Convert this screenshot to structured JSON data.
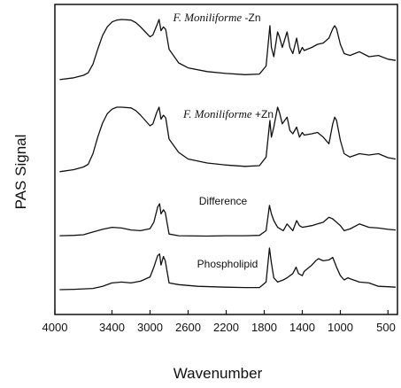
{
  "chart_data": {
    "type": "line",
    "title": "",
    "xlabel": "Wavenumber",
    "ylabel": "PAS Signal",
    "xlim": [
      4000,
      400
    ],
    "x_reversed": true,
    "x_ticks": [
      4000,
      3400,
      3000,
      2600,
      2200,
      1800,
      1400,
      1000,
      500
    ],
    "y_ticks": [],
    "grid": false,
    "series": [
      {
        "name": "F. Moniliforme -Zn",
        "label_parts": [
          "F. Moniliforme",
          " -Zn"
        ],
        "points": [
          [
            3950,
            0.03
          ],
          [
            3800,
            0.06
          ],
          [
            3700,
            0.1
          ],
          [
            3650,
            0.14
          ],
          [
            3600,
            0.28
          ],
          [
            3550,
            0.52
          ],
          [
            3500,
            0.74
          ],
          [
            3450,
            0.88
          ],
          [
            3400,
            0.96
          ],
          [
            3350,
            0.99
          ],
          [
            3300,
            1.0
          ],
          [
            3200,
            0.99
          ],
          [
            3150,
            0.95
          ],
          [
            3100,
            0.88
          ],
          [
            3050,
            0.8
          ],
          [
            3000,
            0.72
          ],
          [
            2970,
            0.75
          ],
          [
            2930,
            0.9
          ],
          [
            2905,
            1.0
          ],
          [
            2885,
            0.82
          ],
          [
            2860,
            0.88
          ],
          [
            2835,
            0.84
          ],
          [
            2800,
            0.52
          ],
          [
            2700,
            0.3
          ],
          [
            2600,
            0.22
          ],
          [
            2400,
            0.16
          ],
          [
            2200,
            0.13
          ],
          [
            2000,
            0.11
          ],
          [
            1850,
            0.12
          ],
          [
            1780,
            0.25
          ],
          [
            1740,
            0.9
          ],
          [
            1725,
            0.55
          ],
          [
            1700,
            0.4
          ],
          [
            1660,
            0.8
          ],
          [
            1640,
            0.72
          ],
          [
            1610,
            0.55
          ],
          [
            1560,
            0.8
          ],
          [
            1530,
            0.55
          ],
          [
            1500,
            0.45
          ],
          [
            1460,
            0.7
          ],
          [
            1430,
            0.45
          ],
          [
            1400,
            0.55
          ],
          [
            1380,
            0.5
          ],
          [
            1300,
            0.55
          ],
          [
            1240,
            0.6
          ],
          [
            1180,
            0.62
          ],
          [
            1120,
            0.7
          ],
          [
            1080,
            0.85
          ],
          [
            1060,
            0.9
          ],
          [
            1040,
            0.85
          ],
          [
            1000,
            0.6
          ],
          [
            960,
            0.45
          ],
          [
            900,
            0.42
          ],
          [
            800,
            0.48
          ],
          [
            700,
            0.4
          ],
          [
            600,
            0.42
          ],
          [
            500,
            0.36
          ],
          [
            420,
            0.34
          ]
        ]
      },
      {
        "name": "F. Moniliforme +Zn",
        "label_parts": [
          "F. Moniliforme",
          " +Zn"
        ],
        "points": [
          [
            3950,
            0.03
          ],
          [
            3800,
            0.06
          ],
          [
            3700,
            0.1
          ],
          [
            3650,
            0.14
          ],
          [
            3600,
            0.3
          ],
          [
            3550,
            0.55
          ],
          [
            3500,
            0.76
          ],
          [
            3450,
            0.9
          ],
          [
            3400,
            0.97
          ],
          [
            3350,
            1.0
          ],
          [
            3300,
            1.0
          ],
          [
            3200,
            0.99
          ],
          [
            3150,
            0.95
          ],
          [
            3100,
            0.88
          ],
          [
            3050,
            0.8
          ],
          [
            3000,
            0.72
          ],
          [
            2970,
            0.75
          ],
          [
            2930,
            0.92
          ],
          [
            2905,
            1.0
          ],
          [
            2885,
            0.82
          ],
          [
            2860,
            0.88
          ],
          [
            2835,
            0.84
          ],
          [
            2800,
            0.52
          ],
          [
            2700,
            0.32
          ],
          [
            2600,
            0.22
          ],
          [
            2400,
            0.16
          ],
          [
            2200,
            0.13
          ],
          [
            2000,
            0.11
          ],
          [
            1850,
            0.12
          ],
          [
            1780,
            0.25
          ],
          [
            1740,
            0.8
          ],
          [
            1725,
            0.55
          ],
          [
            1700,
            0.7
          ],
          [
            1660,
            1.0
          ],
          [
            1640,
            0.92
          ],
          [
            1610,
            0.75
          ],
          [
            1560,
            0.85
          ],
          [
            1530,
            0.65
          ],
          [
            1500,
            0.6
          ],
          [
            1460,
            0.7
          ],
          [
            1430,
            0.55
          ],
          [
            1400,
            0.62
          ],
          [
            1380,
            0.58
          ],
          [
            1300,
            0.6
          ],
          [
            1240,
            0.62
          ],
          [
            1180,
            0.55
          ],
          [
            1120,
            0.45
          ],
          [
            1080,
            0.75
          ],
          [
            1060,
            0.85
          ],
          [
            1040,
            0.8
          ],
          [
            1000,
            0.5
          ],
          [
            960,
            0.3
          ],
          [
            900,
            0.25
          ],
          [
            800,
            0.3
          ],
          [
            700,
            0.28
          ],
          [
            600,
            0.3
          ],
          [
            500,
            0.24
          ],
          [
            420,
            0.22
          ]
        ]
      },
      {
        "name": "Difference",
        "label_parts": [
          "Difference"
        ],
        "points": [
          [
            3950,
            0.05
          ],
          [
            3800,
            0.06
          ],
          [
            3700,
            0.08
          ],
          [
            3600,
            0.16
          ],
          [
            3500,
            0.24
          ],
          [
            3400,
            0.3
          ],
          [
            3300,
            0.28
          ],
          [
            3200,
            0.22
          ],
          [
            3100,
            0.2
          ],
          [
            3000,
            0.26
          ],
          [
            2960,
            0.45
          ],
          [
            2920,
            0.9
          ],
          [
            2900,
            1.0
          ],
          [
            2885,
            0.7
          ],
          [
            2860,
            0.82
          ],
          [
            2840,
            0.74
          ],
          [
            2800,
            0.1
          ],
          [
            2700,
            0.05
          ],
          [
            2400,
            0.04
          ],
          [
            2200,
            0.05
          ],
          [
            2000,
            0.05
          ],
          [
            1850,
            0.06
          ],
          [
            1780,
            0.2
          ],
          [
            1745,
            0.95
          ],
          [
            1725,
            0.7
          ],
          [
            1700,
            0.5
          ],
          [
            1660,
            0.3
          ],
          [
            1600,
            0.2
          ],
          [
            1560,
            0.4
          ],
          [
            1530,
            0.3
          ],
          [
            1500,
            0.2
          ],
          [
            1460,
            0.5
          ],
          [
            1430,
            0.35
          ],
          [
            1400,
            0.3
          ],
          [
            1300,
            0.35
          ],
          [
            1240,
            0.4
          ],
          [
            1180,
            0.45
          ],
          [
            1120,
            0.6
          ],
          [
            1080,
            0.55
          ],
          [
            1040,
            0.45
          ],
          [
            1000,
            0.35
          ],
          [
            960,
            0.2
          ],
          [
            900,
            0.25
          ],
          [
            800,
            0.4
          ],
          [
            700,
            0.3
          ],
          [
            600,
            0.28
          ],
          [
            500,
            0.24
          ],
          [
            420,
            0.22
          ]
        ]
      },
      {
        "name": "Phospholipid",
        "label_parts": [
          "Phospholipid"
        ],
        "points": [
          [
            3950,
            0.02
          ],
          [
            3800,
            0.03
          ],
          [
            3600,
            0.05
          ],
          [
            3500,
            0.1
          ],
          [
            3400,
            0.18
          ],
          [
            3300,
            0.2
          ],
          [
            3200,
            0.18
          ],
          [
            3100,
            0.22
          ],
          [
            3000,
            0.32
          ],
          [
            2960,
            0.55
          ],
          [
            2920,
            0.82
          ],
          [
            2900,
            0.86
          ],
          [
            2885,
            0.6
          ],
          [
            2860,
            0.8
          ],
          [
            2840,
            0.7
          ],
          [
            2800,
            0.18
          ],
          [
            2700,
            0.14
          ],
          [
            2500,
            0.1
          ],
          [
            2200,
            0.08
          ],
          [
            2000,
            0.07
          ],
          [
            1850,
            0.07
          ],
          [
            1780,
            0.2
          ],
          [
            1745,
            1.0
          ],
          [
            1725,
            0.65
          ],
          [
            1700,
            0.3
          ],
          [
            1660,
            0.2
          ],
          [
            1600,
            0.25
          ],
          [
            1560,
            0.3
          ],
          [
            1500,
            0.4
          ],
          [
            1465,
            0.55
          ],
          [
            1440,
            0.4
          ],
          [
            1400,
            0.35
          ],
          [
            1380,
            0.45
          ],
          [
            1300,
            0.6
          ],
          [
            1260,
            0.7
          ],
          [
            1230,
            0.75
          ],
          [
            1180,
            0.7
          ],
          [
            1120,
            0.72
          ],
          [
            1080,
            0.78
          ],
          [
            1040,
            0.55
          ],
          [
            1000,
            0.35
          ],
          [
            960,
            0.25
          ],
          [
            920,
            0.3
          ],
          [
            900,
            0.28
          ],
          [
            800,
            0.2
          ],
          [
            700,
            0.18
          ],
          [
            600,
            0.1
          ],
          [
            500,
            0.09
          ],
          [
            420,
            0.08
          ]
        ]
      }
    ]
  }
}
